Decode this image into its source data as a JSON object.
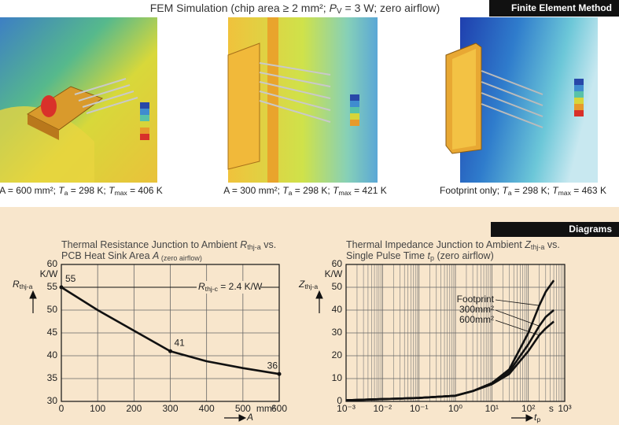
{
  "header": {
    "title": [
      "FEM Simulation (chip area ≥ 2 mm²; ",
      "P",
      "V",
      " = 3 W; zero airflow)"
    ],
    "section_tab": "Finite Element Method",
    "diagrams_tab": "Diagrams"
  },
  "fem_panels": [
    {
      "caption": [
        "A = 600 mm²; ",
        "T",
        "a",
        " = 298 K; ",
        "T",
        "max",
        " = 406 K"
      ]
    },
    {
      "caption": [
        "A = 300 mm²; ",
        "T",
        "a",
        " = 298 K; ",
        "T",
        "max",
        " = 421 K"
      ]
    },
    {
      "caption": [
        "Footprint only; ",
        "T",
        "a",
        " = 298 K; ",
        "T",
        "max",
        " = 463 K"
      ]
    }
  ],
  "chart_data": [
    {
      "type": "line",
      "title": [
        [
          "Thermal Resistance Junction to Ambient ",
          "R",
          "thj-a",
          " vs."
        ],
        [
          "PCB Heat Sink Area ",
          "A",
          " (zero airflow)"
        ]
      ],
      "x": [
        0,
        100,
        200,
        300,
        400,
        500,
        600
      ],
      "values": [
        55,
        50,
        45.5,
        41,
        38.8,
        37.3,
        36
      ],
      "value_labels": [
        "55",
        null,
        null,
        "41",
        null,
        null,
        "36"
      ],
      "color": "#111111",
      "xlim": [
        0,
        600
      ],
      "xticks": [
        0,
        100,
        200,
        300,
        400,
        500,
        600
      ],
      "ylim": [
        30,
        60
      ],
      "yticks": [
        30,
        35,
        40,
        45,
        50,
        55,
        60
      ],
      "grid": true,
      "y_unit": "K/W",
      "x_unit": "mm²",
      "y_label": [
        "R",
        "thj-a"
      ],
      "x_label": [
        "A"
      ],
      "annotation": {
        "text": [
          "R",
          "thj-c",
          " = 2.4 K/W"
        ],
        "y": 55
      }
    },
    {
      "type": "line",
      "x_scale": "log",
      "title": [
        [
          "Thermal Impedance Junction to Ambient ",
          "Z",
          "thj-a",
          " vs."
        ],
        [
          "Single Pulse Time ",
          "t",
          "p",
          " (zero airflow)"
        ]
      ],
      "x": [
        0.001,
        0.01,
        0.1,
        1,
        3,
        10,
        30,
        100,
        200,
        300,
        500
      ],
      "series": [
        {
          "name": "Footprint",
          "color": "#111111",
          "values": [
            0.5,
            1,
            1.5,
            2.5,
            4.5,
            8,
            14,
            30,
            42,
            48,
            53
          ]
        },
        {
          "name": "300mm²",
          "color": "#111111",
          "values": [
            0.5,
            1,
            1.5,
            2.5,
            4.5,
            8,
            13,
            25,
            33,
            37,
            40
          ]
        },
        {
          "name": "600mm²",
          "color": "#111111",
          "values": [
            0.5,
            1,
            1.5,
            2.5,
            4.5,
            7.5,
            12,
            22,
            29,
            32,
            35
          ]
        }
      ],
      "xlim": [
        0.001,
        1000
      ],
      "xticks": [
        {
          "value": 0.001,
          "label": "10⁻³"
        },
        {
          "value": 0.01,
          "label": "10⁻²"
        },
        {
          "value": 0.1,
          "label": "10⁻¹"
        },
        {
          "value": 1,
          "label": "10⁰"
        },
        {
          "value": 10,
          "label": "10¹"
        },
        {
          "value": 100,
          "label": "10²"
        },
        {
          "value": 1000,
          "label": "10³"
        }
      ],
      "ylim": [
        0,
        60
      ],
      "yticks": [
        0,
        10,
        20,
        30,
        40,
        50,
        60
      ],
      "grid": true,
      "y_unit": "K/W",
      "x_unit": "s",
      "y_label": [
        "Z",
        "thj-a"
      ],
      "x_label": [
        "t",
        "p"
      ]
    }
  ]
}
